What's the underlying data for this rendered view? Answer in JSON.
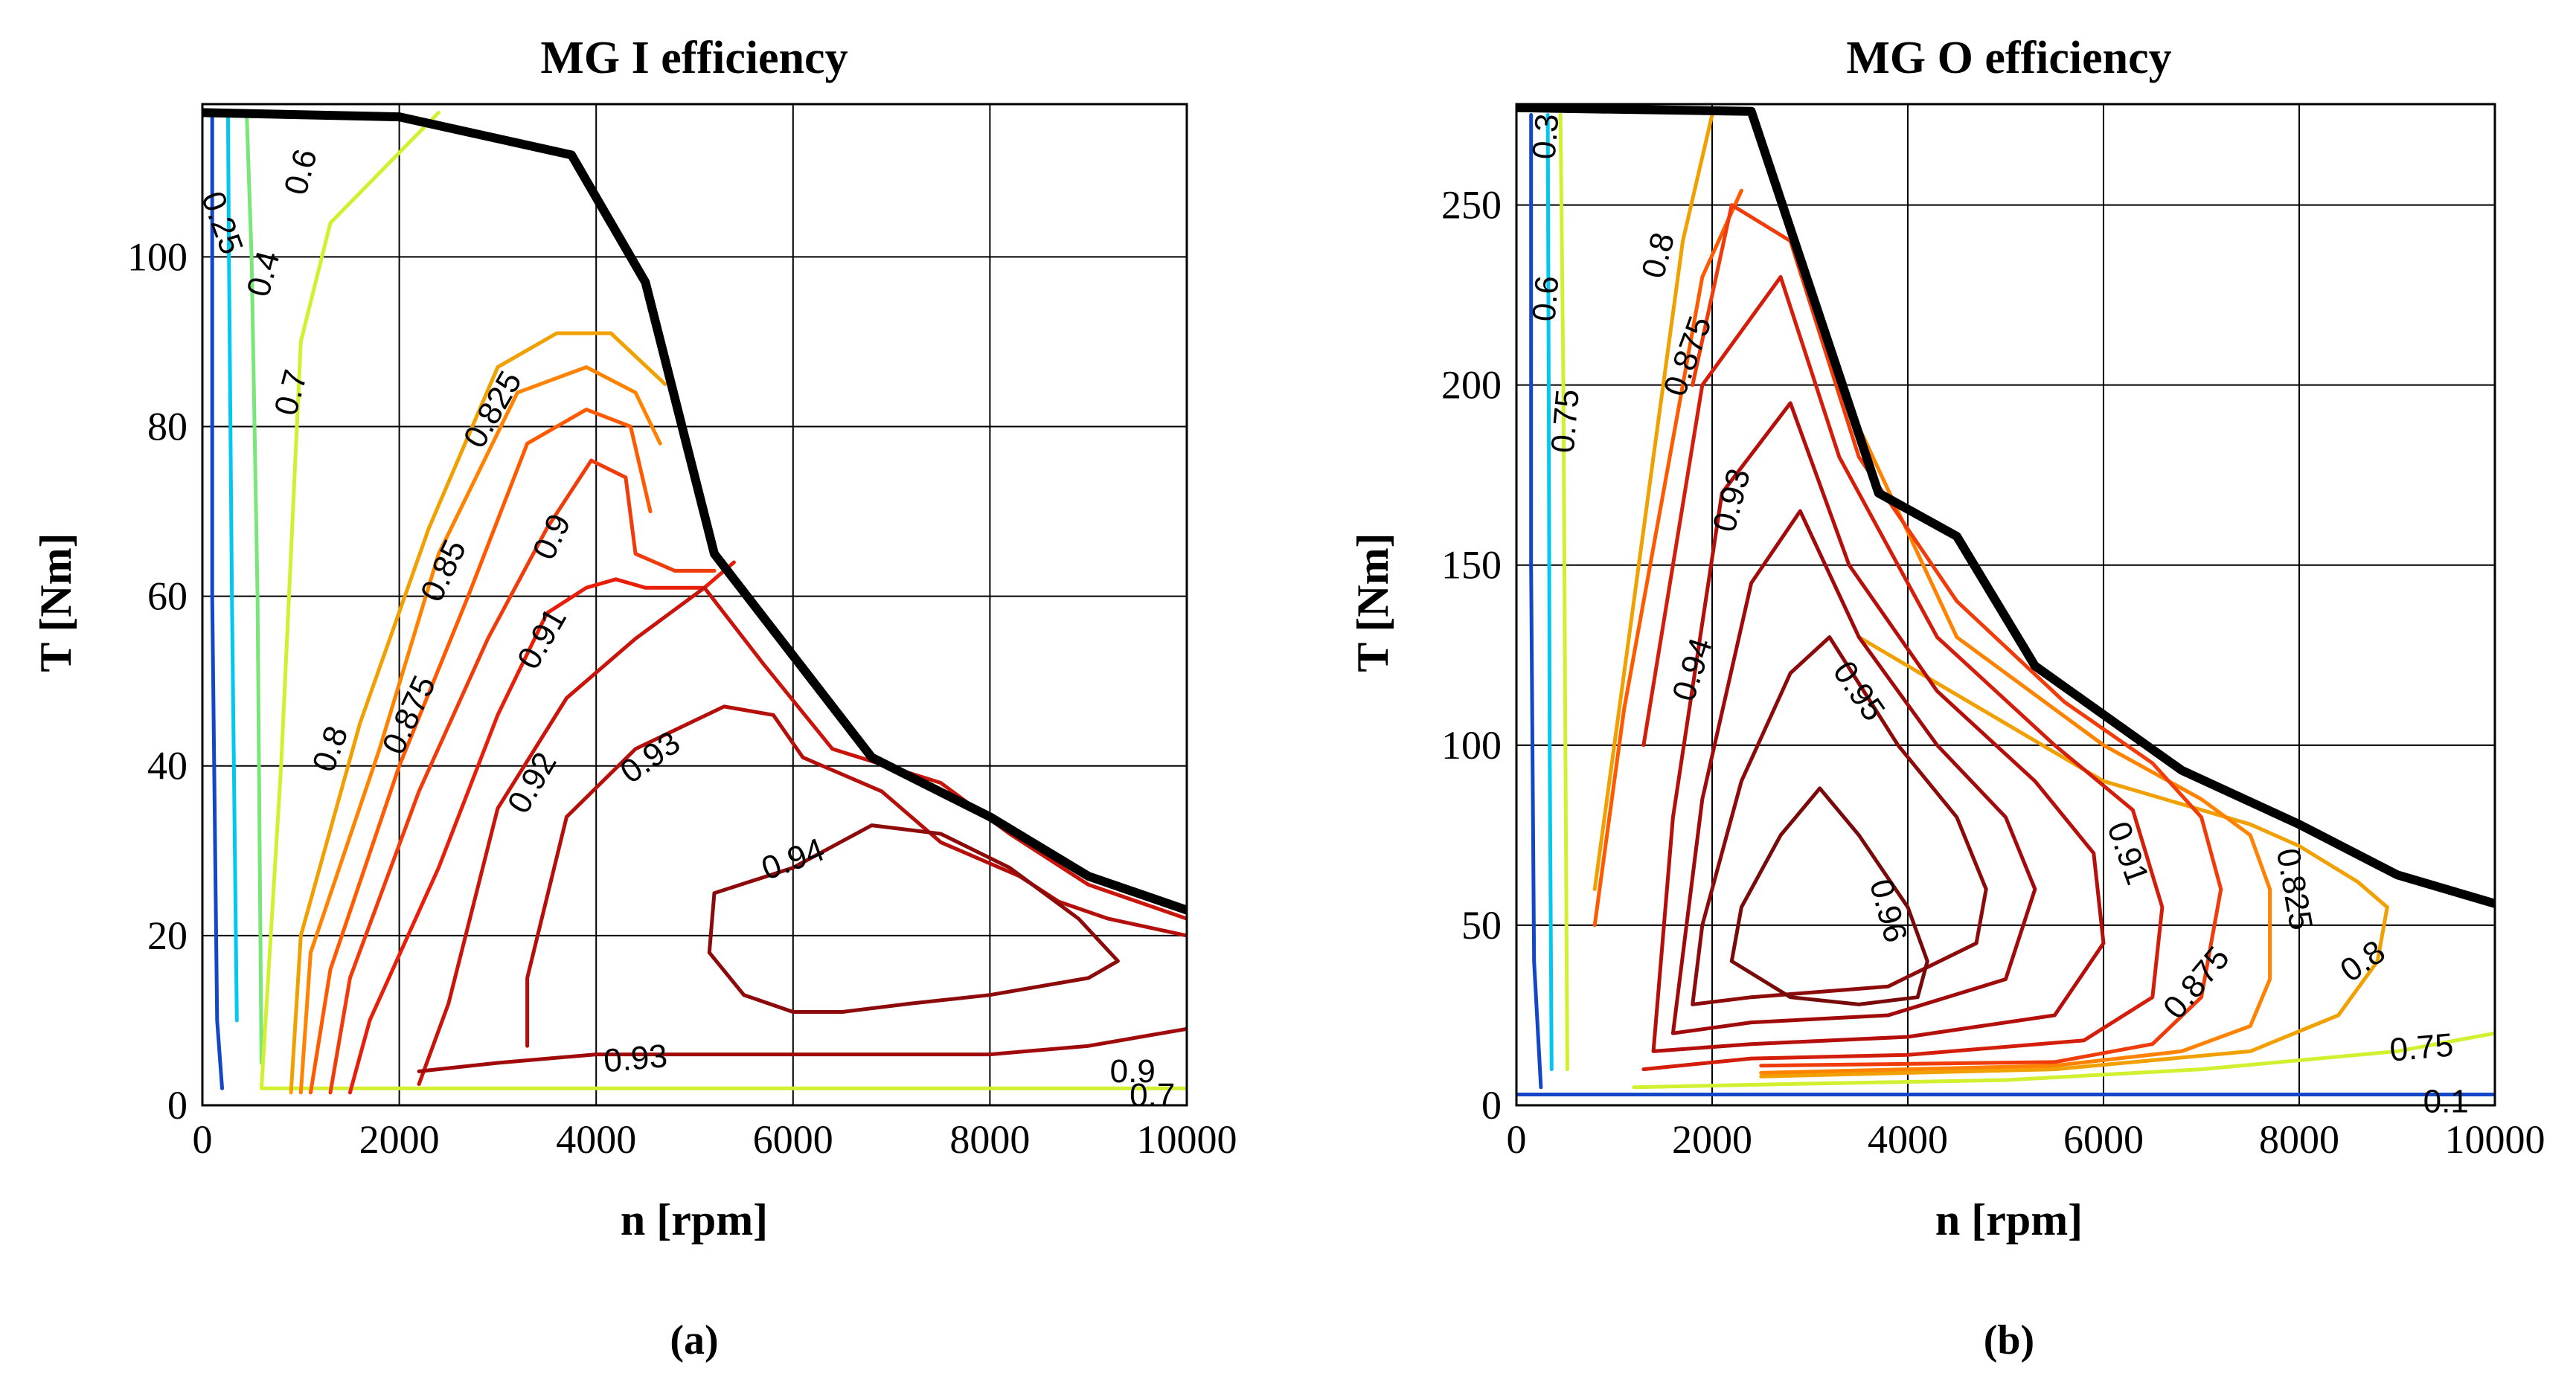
{
  "chart_data": [
    {
      "type": "contour",
      "panel": "a",
      "title": "MG I efficiency",
      "xlabel": "n [rpm]",
      "ylabel": "T [Nm]",
      "caption": "(a)",
      "xlim": [
        0,
        10000
      ],
      "ylim": [
        0,
        118
      ],
      "xticks": [
        0,
        2000,
        4000,
        6000,
        8000,
        10000
      ],
      "yticks": [
        0,
        20,
        40,
        60,
        80,
        100
      ],
      "grid": true,
      "envelope": {
        "x": [
          0,
          2000,
          3750,
          4500,
          5200,
          6000,
          6800,
          8000,
          9000,
          10000
        ],
        "y": [
          117,
          116.5,
          112,
          97,
          65,
          53,
          41,
          34,
          27,
          23
        ]
      },
      "contours": [
        {
          "level": "0.25",
          "color": "#1446c8",
          "x": [
            100,
            100,
            150,
            200
          ],
          "y": [
            117,
            60,
            10,
            2
          ]
        },
        {
          "level": "0.4",
          "color": "#00c8f0",
          "x": [
            260,
            270,
            300,
            350
          ],
          "y": [
            117,
            100,
            60,
            10
          ]
        },
        {
          "level": "0.6",
          "color": "#78e678",
          "x": [
            450,
            500,
            560,
            600
          ],
          "y": [
            117,
            100,
            60,
            5
          ]
        },
        {
          "level": "0.7",
          "color": "#d2f030",
          "x": [
            2400,
            1300,
            1000,
            800,
            600,
            10000
          ],
          "y": [
            117,
            104,
            90,
            40,
            2,
            2
          ]
        },
        {
          "level": "0.8",
          "color": "#f0a000",
          "x": [
            900,
            1000,
            1600,
            2300,
            3000,
            3600,
            4150,
            4700
          ],
          "y": [
            1.5,
            20,
            45,
            68,
            87,
            91,
            91,
            85
          ]
        },
        {
          "level": "0.825",
          "color": "#ff8200",
          "x": [
            1000,
            1100,
            1800,
            2400,
            3200,
            3900,
            4400,
            4650
          ],
          "y": [
            1.5,
            18,
            42,
            65,
            84,
            87,
            84,
            78
          ]
        },
        {
          "level": "0.85",
          "color": "#ff5a00",
          "x": [
            1100,
            1300,
            2000,
            2700,
            3300,
            3900,
            4350,
            4550
          ],
          "y": [
            1.5,
            16,
            40,
            60,
            78,
            82,
            80,
            70
          ]
        },
        {
          "level": "0.875",
          "color": "#f03c0a",
          "x": [
            1300,
            1500,
            2200,
            2900,
            3500,
            3950,
            4300,
            4400,
            4800,
            5200
          ],
          "y": [
            1.5,
            15,
            37,
            55,
            68,
            76,
            74,
            65,
            63,
            63
          ]
        },
        {
          "level": "0.9",
          "color": "#e61e0a",
          "x": [
            1500,
            1700,
            2400,
            3000,
            3500,
            3900,
            4200,
            4500,
            5100,
            5400
          ],
          "y": [
            1.5,
            10,
            28,
            46,
            58,
            61,
            62,
            61,
            61,
            64
          ]
        },
        {
          "level": "0.91",
          "color": "#c8140a",
          "x": [
            2200,
            2500,
            3000,
            3700,
            4400,
            5100,
            5700,
            6400,
            7500,
            8200,
            9000,
            10000
          ],
          "y": [
            2.5,
            12,
            35,
            48,
            55,
            61,
            52,
            42,
            38,
            32,
            26,
            22
          ]
        },
        {
          "level": "0.92",
          "color": "#b40f0a",
          "x": [
            3300,
            3300,
            3700,
            4400,
            5300,
            5800,
            6100,
            6900,
            7500,
            8300,
            8700,
            9200,
            10000
          ],
          "y": [
            7,
            15,
            34,
            42,
            47,
            46,
            41,
            37,
            31,
            27,
            24,
            22,
            20
          ]
        },
        {
          "level": "0.93",
          "color": "#a00a0a",
          "x": [
            2200,
            3000,
            4000,
            5000,
            6000,
            7000,
            8000,
            9000,
            10000
          ],
          "y": [
            4,
            5,
            6,
            6,
            6,
            6,
            6,
            7,
            9
          ]
        },
        {
          "level": "0.94",
          "color": "#8c0a0a",
          "x": [
            5200,
            6000,
            6800,
            7500,
            8200,
            8900,
            9300,
            9000,
            8000,
            7200,
            6500,
            6000,
            5500,
            5150,
            5200
          ],
          "y": [
            25,
            28,
            33,
            32,
            28,
            22,
            17,
            15,
            13,
            12,
            11,
            11,
            13,
            18,
            25
          ]
        }
      ],
      "labels": [
        {
          "text": "0.25",
          "x": 200,
          "y": 104,
          "angle": 70
        },
        {
          "text": "0.4",
          "x": 620,
          "y": 98,
          "angle": -75
        },
        {
          "text": "0.6",
          "x": 1000,
          "y": 110,
          "angle": -75
        },
        {
          "text": "0.7",
          "x": 900,
          "y": 84,
          "angle": -75
        },
        {
          "text": "0.8",
          "x": 1300,
          "y": 42,
          "angle": -70
        },
        {
          "text": "0.825",
          "x": 2950,
          "y": 82,
          "angle": -60
        },
        {
          "text": "0.85",
          "x": 2450,
          "y": 63,
          "angle": -65
        },
        {
          "text": "0.875",
          "x": 2100,
          "y": 46,
          "angle": -65
        },
        {
          "text": "0.9",
          "x": 3550,
          "y": 67,
          "angle": -65
        },
        {
          "text": "0.91",
          "x": 3450,
          "y": 55,
          "angle": -60
        },
        {
          "text": "0.92",
          "x": 3350,
          "y": 38,
          "angle": -60
        },
        {
          "text": "0.93",
          "x": 4550,
          "y": 41,
          "angle": -35
        },
        {
          "text": "0.93",
          "x": 4400,
          "y": 5.5,
          "angle": -5
        },
        {
          "text": "0.94",
          "x": 6000,
          "y": 29,
          "angle": -20
        },
        {
          "text": "0.9",
          "x": 9450,
          "y": 4,
          "angle": 0
        },
        {
          "text": "0.7",
          "x": 9650,
          "y": 1.2,
          "angle": 0
        }
      ]
    },
    {
      "type": "contour",
      "panel": "b",
      "title": "MG O efficiency",
      "xlabel": "n [rpm]",
      "ylabel": "T [Nm]",
      "caption": "(b)",
      "xlim": [
        0,
        10000
      ],
      "ylim": [
        0,
        278
      ],
      "xticks": [
        0,
        2000,
        4000,
        6000,
        8000,
        10000
      ],
      "yticks": [
        0,
        50,
        100,
        150,
        200,
        250
      ],
      "grid": true,
      "envelope": {
        "x": [
          0,
          2400,
          3700,
          4500,
          5300,
          6800,
          8000,
          9000,
          10000
        ],
        "y": [
          277,
          276,
          170,
          158,
          122,
          93,
          78,
          64,
          56
        ]
      },
      "contours": [
        {
          "level": "0.3",
          "color": "#1446c8",
          "x": [
            150,
            150,
            180,
            250
          ],
          "y": [
            275,
            150,
            40,
            5
          ]
        },
        {
          "level": "0.6",
          "color": "#00c8f0",
          "x": [
            320,
            330,
            340,
            360
          ],
          "y": [
            275,
            200,
            100,
            10
          ]
        },
        {
          "level": "0.75",
          "color": "#d2f030",
          "x": [
            450,
            480,
            500,
            520
          ],
          "y": [
            275,
            200,
            100,
            10
          ]
        },
        {
          "level": "0.8",
          "color": "#f0a000",
          "x": [
            800,
            1100,
            1400,
            1700,
            2000
          ],
          "y": [
            60,
            120,
            180,
            240,
            275
          ]
        },
        {
          "level": "0.875",
          "color": "#ff5a00",
          "x": [
            800,
            1100,
            1500,
            1900,
            2300
          ],
          "y": [
            50,
            110,
            170,
            230,
            254
          ]
        },
        {
          "level": "0.75",
          "color": "#d2f030",
          "x": [
            1200,
            3000,
            5000,
            7000,
            9000,
            10000
          ],
          "y": [
            5,
            6,
            7,
            10,
            15,
            20
          ]
        },
        {
          "level": "0.8",
          "color": "#f0a000",
          "x": [
            2500,
            5500,
            7500,
            8400,
            8800,
            8900,
            8600,
            8000,
            7500,
            6000,
            3500
          ],
          "y": [
            8,
            10,
            15,
            25,
            40,
            55,
            62,
            72,
            78,
            90,
            130
          ]
        },
        {
          "level": "0.825",
          "color": "#ff8200",
          "x": [
            2500,
            5500,
            6800,
            7500,
            7700,
            7700,
            7500,
            7000,
            6000,
            4500,
            3300
          ],
          "y": [
            9,
            11,
            15,
            22,
            35,
            60,
            75,
            85,
            100,
            130,
            200
          ]
        },
        {
          "level": "0.875",
          "color": "#f03c0a",
          "x": [
            2500,
            5500,
            6500,
            7000,
            7200,
            7000,
            6500,
            5600,
            4500,
            3500,
            2800,
            2200,
            1800
          ],
          "y": [
            11,
            12,
            17,
            30,
            60,
            80,
            95,
            112,
            140,
            180,
            240,
            250,
            200
          ]
        },
        {
          "level": "0.91",
          "color": "#d21e0a",
          "x": [
            1300,
            2400,
            4000,
            5800,
            6500,
            6600,
            6300,
            5500,
            4300,
            3300,
            2700,
            1900,
            1300
          ],
          "y": [
            10,
            13,
            14,
            18,
            30,
            55,
            82,
            100,
            130,
            180,
            230,
            200,
            100
          ]
        },
        {
          "level": "0.93",
          "color": "#b40f0a",
          "x": [
            1400,
            2400,
            4000,
            5500,
            6000,
            5900,
            5300,
            4300,
            3400,
            2800,
            2100,
            1600,
            1400
          ],
          "y": [
            15,
            17,
            19,
            25,
            45,
            70,
            90,
            115,
            150,
            195,
            170,
            80,
            15
          ]
        },
        {
          "level": "0.94",
          "color": "#a00a0a",
          "x": [
            1600,
            2400,
            3800,
            5000,
            5300,
            5000,
            4300,
            3500,
            2900,
            2400,
            1900,
            1600
          ],
          "y": [
            20,
            23,
            25,
            35,
            60,
            80,
            100,
            130,
            165,
            145,
            85,
            20
          ]
        },
        {
          "level": "0.95",
          "color": "#8c0a0a",
          "x": [
            1800,
            2400,
            3800,
            4700,
            4800,
            4500,
            3900,
            3200,
            2800,
            2300,
            1900,
            1800
          ],
          "y": [
            28,
            30,
            33,
            45,
            60,
            80,
            100,
            130,
            120,
            90,
            50,
            28
          ]
        },
        {
          "level": "0.96",
          "color": "#780a0a",
          "x": [
            2200,
            2800,
            3500,
            4100,
            4200,
            4000,
            3500,
            3100,
            2700,
            2300,
            2200
          ],
          "y": [
            40,
            30,
            28,
            30,
            40,
            55,
            75,
            88,
            75,
            55,
            40
          ]
        },
        {
          "level": "0.1",
          "color": "#1446c8",
          "x": [
            0,
            3000,
            5000,
            7000,
            9000,
            10000
          ],
          "y": [
            3,
            3,
            3,
            3,
            3,
            3
          ]
        }
      ],
      "labels": [
        {
          "text": "0.3",
          "x": 300,
          "y": 269,
          "angle": -85
        },
        {
          "text": "0.6",
          "x": 300,
          "y": 224,
          "angle": -85
        },
        {
          "text": "0.75",
          "x": 500,
          "y": 190,
          "angle": -85
        },
        {
          "text": "0.8",
          "x": 1450,
          "y": 236,
          "angle": -75
        },
        {
          "text": "0.875",
          "x": 1750,
          "y": 208,
          "angle": -70
        },
        {
          "text": "0.93",
          "x": 2200,
          "y": 168,
          "angle": -75
        },
        {
          "text": "0.94",
          "x": 1800,
          "y": 121,
          "angle": -72
        },
        {
          "text": "0.95",
          "x": 3500,
          "y": 115,
          "angle": 55
        },
        {
          "text": "0.96",
          "x": 3800,
          "y": 54,
          "angle": 75
        },
        {
          "text": "0.91",
          "x": 6250,
          "y": 70,
          "angle": 70
        },
        {
          "text": "0.875",
          "x": 6950,
          "y": 34,
          "angle": -50
        },
        {
          "text": "0.825",
          "x": 7950,
          "y": 60,
          "angle": 80
        },
        {
          "text": "0.8",
          "x": 8650,
          "y": 40,
          "angle": -35
        },
        {
          "text": "0.75",
          "x": 9250,
          "y": 16,
          "angle": -5
        },
        {
          "text": "0.1",
          "x": 9500,
          "y": 1,
          "angle": 0
        }
      ]
    }
  ]
}
